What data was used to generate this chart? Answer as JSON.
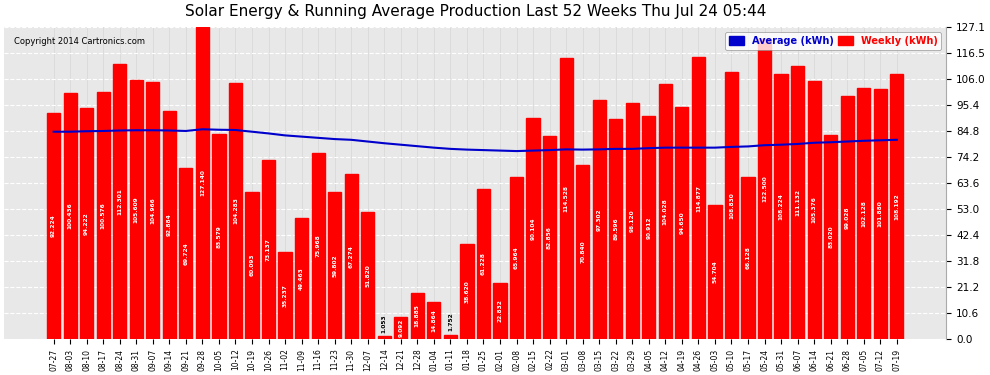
{
  "title": "Solar Energy & Running Average Production Last 52 Weeks Thu Jul 24 05:44",
  "copyright": "Copyright 2014 Cartronics.com",
  "bar_color": "#ff0000",
  "avg_line_color": "#0000cc",
  "background_color": "#ffffff",
  "plot_bg_color": "#e8e8e8",
  "grid_color": "#ffffff",
  "ylim": [
    0,
    127.1
  ],
  "yticks": [
    0.0,
    10.6,
    21.2,
    31.8,
    42.4,
    53.0,
    63.6,
    74.2,
    84.8,
    95.4,
    106.0,
    116.5,
    127.1
  ],
  "legend_avg_color": "#0000cc",
  "legend_weekly_color": "#ff0000",
  "categories": [
    "07-27",
    "08-03",
    "08-10",
    "08-17",
    "08-24",
    "08-31",
    "09-07",
    "09-14",
    "09-21",
    "09-28",
    "10-05",
    "10-12",
    "10-19",
    "10-26",
    "11-02",
    "11-09",
    "11-16",
    "11-23",
    "11-30",
    "12-07",
    "12-14",
    "12-21",
    "12-28",
    "01-04",
    "01-11",
    "01-18",
    "01-25",
    "02-01",
    "02-08",
    "02-15",
    "02-22",
    "03-01",
    "03-08",
    "03-15",
    "03-22",
    "03-29",
    "04-05",
    "04-12",
    "04-19",
    "04-26",
    "05-03",
    "05-10",
    "05-17",
    "05-24",
    "05-31",
    "06-07",
    "06-14",
    "06-21",
    "06-28",
    "07-05",
    "07-12",
    "07-19"
  ],
  "weekly_values": [
    92.224,
    100.436,
    94.222,
    100.576,
    112.301,
    105.609,
    104.966,
    92.884,
    69.724,
    127.14,
    83.579,
    104.283,
    60.093,
    73.137,
    35.237,
    49.463,
    75.968,
    59.802,
    67.274,
    51.82,
    1.053,
    9.092,
    18.885,
    14.864,
    1.752,
    38.62,
    61.228,
    22.832,
    65.964,
    90.104,
    82.856,
    114.528,
    70.84,
    97.302,
    89.596,
    96.12,
    90.912,
    104.028,
    94.65,
    114.877,
    54.704,
    108.83,
    66.128,
    122.5,
    108.224,
    111.132,
    105.376,
    83.02,
    99.028,
    102.128,
    101.88,
    108.192
  ],
  "avg_values": [
    84.5,
    84.5,
    84.7,
    84.8,
    85.0,
    85.1,
    85.1,
    85.0,
    84.8,
    85.5,
    85.3,
    85.2,
    84.5,
    83.8,
    83.0,
    82.5,
    82.0,
    81.5,
    81.2,
    80.5,
    79.8,
    79.2,
    78.6,
    78.0,
    77.5,
    77.2,
    77.0,
    76.8,
    76.6,
    76.8,
    77.0,
    77.3,
    77.2,
    77.3,
    77.5,
    77.5,
    77.8,
    78.0,
    78.0,
    78.0,
    78.0,
    78.3,
    78.5,
    79.0,
    79.2,
    79.5,
    80.0,
    80.2,
    80.5,
    80.8,
    81.0,
    81.2
  ]
}
